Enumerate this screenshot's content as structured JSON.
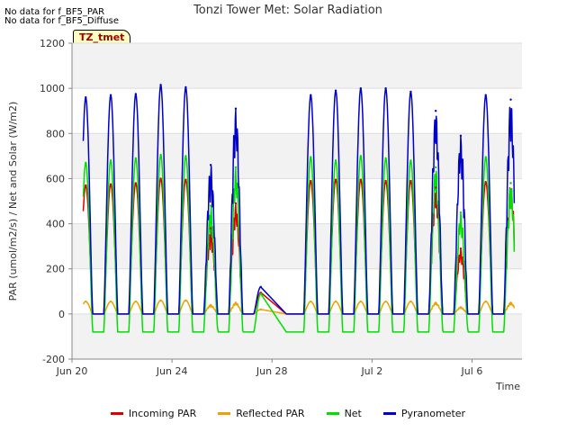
{
  "notes": [
    "No data for f_BF5_PAR",
    "No data for f_BF5_Diffuse"
  ],
  "tag_label": "TZ_tmet",
  "chart_data": {
    "type": "line",
    "title": "Tonzi Tower Met: Solar Radiation",
    "xlabel": "Time",
    "ylabel": "PAR (umol/m2/s) / Net and Solar (W/m2)",
    "ylim": [
      -200,
      1200
    ],
    "yticks": [
      -200,
      0,
      200,
      400,
      600,
      800,
      1000,
      1200
    ],
    "xlim": [
      "2024-06-20",
      "2024-07-08"
    ],
    "xticks": [
      {
        "date": "2024-06-20",
        "label": "Jun 20"
      },
      {
        "date": "2024-06-24",
        "label": "Jun 24"
      },
      {
        "date": "2024-06-28",
        "label": "Jun 28"
      },
      {
        "date": "2024-07-02",
        "label": "Jul 2"
      },
      {
        "date": "2024-07-06",
        "label": "Jul 6"
      }
    ],
    "grid": "horizontal bands",
    "legend_position": "bottom",
    "x": [
      "2024-06-20",
      "2024-06-21",
      "2024-06-22",
      "2024-06-23",
      "2024-06-24",
      "2024-06-25",
      "2024-06-26",
      "2024-06-27",
      "2024-06-28",
      "2024-06-29",
      "2024-06-30",
      "2024-07-01",
      "2024-07-02",
      "2024-07-03",
      "2024-07-04",
      "2024-07-05",
      "2024-07-06",
      "2024-07-07"
    ],
    "series_type": "daily peak values",
    "series": [
      {
        "name": "Incoming PAR",
        "color": "#dd0000",
        "values": [
          570,
          575,
          580,
          600,
          595,
          380,
          490,
          95,
          null,
          590,
          595,
          595,
          590,
          590,
          560,
          290,
          585,
          580
        ]
      },
      {
        "name": "Reflected PAR",
        "color": "#f0a000",
        "values": [
          55,
          55,
          55,
          60,
          60,
          40,
          50,
          20,
          null,
          55,
          55,
          55,
          55,
          55,
          50,
          30,
          55,
          50
        ]
      },
      {
        "name": "Net",
        "color": "#00e000",
        "values": [
          670,
          680,
          690,
          705,
          700,
          480,
          650,
          90,
          null,
          695,
          680,
          700,
          690,
          680,
          650,
          450,
          695,
          580
        ]
      },
      {
        "name": "Pyranometer",
        "color": "#0000cc",
        "values": [
          960,
          970,
          975,
          1015,
          1005,
          660,
          910,
          120,
          null,
          970,
          990,
          1000,
          1000,
          985,
          900,
          790,
          970,
          950
        ]
      }
    ],
    "night_values": {
      "Incoming PAR": 0,
      "Reflected PAR": 0,
      "Net": -80,
      "Pyranometer": 0
    }
  }
}
